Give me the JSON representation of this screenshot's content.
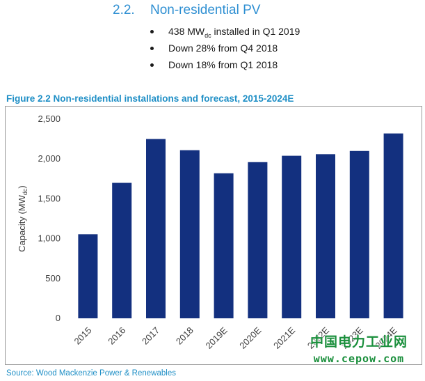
{
  "section": {
    "number": "2.2.",
    "title": "Non-residential PV",
    "bullets": [
      {
        "text": "438 MWdc installed in Q1 2019"
      },
      {
        "text": "Down 28% from Q4 2018"
      },
      {
        "text": "Down 18% from Q1 2018"
      }
    ]
  },
  "figure": {
    "title": "Figure 2.2 Non-residential installations and forecast, 2015-2024E",
    "source": "Source: Wood Mackenzie Power & Renewables"
  },
  "watermark": {
    "cn": "中国电力工业网",
    "url": "www.cepow.com"
  },
  "colors": {
    "heading": "#2e8fd2",
    "figure_title": "#1f8fc6",
    "bar": "#13307f",
    "watermark": "#1a8f3c"
  },
  "chart_data": {
    "type": "bar",
    "categories": [
      "2015",
      "2016",
      "2017",
      "2018",
      "2019E",
      "2020E",
      "2021E",
      "2022E",
      "2023E",
      "2024E"
    ],
    "values": [
      1055,
      1700,
      2250,
      2110,
      1820,
      1960,
      2040,
      2060,
      2100,
      2320
    ],
    "ylabel": "Capacity (MWdc)",
    "ylim": [
      0,
      2500
    ],
    "yticks": [
      0,
      500,
      1000,
      1500,
      2000,
      2500
    ],
    "ytick_labels": [
      "0",
      "500",
      "1,000",
      "1,500",
      "2,000",
      "2,500"
    ],
    "grid": false,
    "legend": "none"
  }
}
